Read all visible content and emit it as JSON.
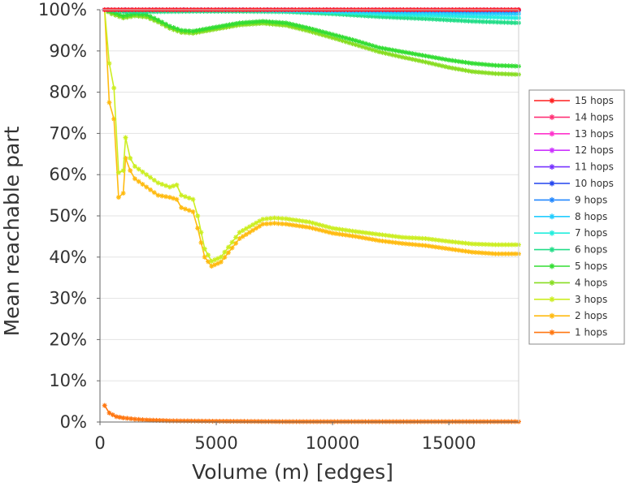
{
  "chart_data": {
    "type": "line",
    "title": "",
    "xlabel": "Volume (m) [edges]",
    "ylabel": "Mean reachable part",
    "xlim": [
      0,
      18000
    ],
    "ylim": [
      0,
      100
    ],
    "x_ticks": [
      {
        "value": 0,
        "label": "0"
      },
      {
        "value": 5000,
        "label": "5000"
      },
      {
        "value": 10000,
        "label": "10000"
      },
      {
        "value": 15000,
        "label": "15000"
      }
    ],
    "y_ticks": [
      {
        "value": 0,
        "label": "0%"
      },
      {
        "value": 10,
        "label": "10%"
      },
      {
        "value": 20,
        "label": "20%"
      },
      {
        "value": 30,
        "label": "30%"
      },
      {
        "value": 40,
        "label": "40%"
      },
      {
        "value": 50,
        "label": "50%"
      },
      {
        "value": 60,
        "label": "60%"
      },
      {
        "value": 70,
        "label": "70%"
      },
      {
        "value": 80,
        "label": "80%"
      },
      {
        "value": 90,
        "label": "90%"
      },
      {
        "value": 100,
        "label": "100%"
      }
    ],
    "grid": "horizontal",
    "legend_position": "right",
    "marker": "star",
    "series": [
      {
        "name": "15 hops",
        "color": "#ff1f1f",
        "x": [
          200,
          3000,
          6000,
          9000,
          12000,
          15000,
          18000
        ],
        "y": [
          100,
          100,
          100,
          100,
          100,
          100,
          100
        ]
      },
      {
        "name": "14 hops",
        "color": "#ff3377",
        "x": [
          200,
          3000,
          6000,
          9000,
          12000,
          15000,
          18000
        ],
        "y": [
          100,
          100,
          100,
          100,
          100,
          100,
          100
        ]
      },
      {
        "name": "13 hops",
        "color": "#ff33cc",
        "x": [
          200,
          3000,
          6000,
          9000,
          12000,
          15000,
          18000
        ],
        "y": [
          100,
          100,
          100,
          100,
          100,
          100,
          100
        ]
      },
      {
        "name": "12 hops",
        "color": "#cc33ff",
        "x": [
          200,
          3000,
          6000,
          9000,
          12000,
          15000,
          18000
        ],
        "y": [
          100,
          100,
          100,
          100,
          100,
          100,
          100
        ]
      },
      {
        "name": "11 hops",
        "color": "#7733ff",
        "x": [
          200,
          3000,
          6000,
          9000,
          12000,
          15000,
          18000
        ],
        "y": [
          100,
          100,
          100,
          100,
          100,
          100,
          100
        ]
      },
      {
        "name": "10 hops",
        "color": "#2244ee",
        "x": [
          200,
          3000,
          6000,
          9000,
          12000,
          15000,
          18000
        ],
        "y": [
          100,
          100,
          100,
          100,
          100,
          100,
          100
        ]
      },
      {
        "name": "9 hops",
        "color": "#2288ff",
        "x": [
          200,
          3000,
          6000,
          9000,
          12000,
          15000,
          18000
        ],
        "y": [
          100,
          100,
          100,
          100,
          99.9,
          99.8,
          99.7
        ]
      },
      {
        "name": "8 hops",
        "color": "#22ccff",
        "x": [
          200,
          3000,
          6000,
          9000,
          12000,
          15000,
          18000
        ],
        "y": [
          100,
          100,
          100,
          99.8,
          99.5,
          99.2,
          99.0
        ]
      },
      {
        "name": "7 hops",
        "color": "#22eedd",
        "x": [
          200,
          3000,
          6000,
          9000,
          12000,
          15000,
          18000
        ],
        "y": [
          100,
          100,
          100,
          99.6,
          99.0,
          98.5,
          98.0
        ]
      },
      {
        "name": "6 hops",
        "color": "#22dd88",
        "x": [
          200,
          1000,
          2000,
          4000,
          6000,
          8000,
          10000,
          12000,
          14000,
          16000,
          18000
        ],
        "y": [
          100,
          99.5,
          99.5,
          99.6,
          99.6,
          99.5,
          99.0,
          98.3,
          97.8,
          97.2,
          96.8
        ]
      },
      {
        "name": "5 hops",
        "color": "#33dd33",
        "x": [
          200,
          500,
          1000,
          1500,
          2000,
          2500,
          3000,
          3500,
          4000,
          5000,
          6000,
          7000,
          8000,
          9000,
          10000,
          11000,
          12000,
          13000,
          14000,
          15000,
          16000,
          17000,
          18000
        ],
        "y": [
          100,
          99.5,
          98.5,
          99.0,
          98.8,
          97.5,
          96.0,
          95.0,
          94.8,
          95.8,
          96.8,
          97.2,
          96.8,
          95.5,
          94.0,
          92.5,
          90.8,
          89.8,
          88.8,
          87.8,
          87.0,
          86.5,
          86.3
        ]
      },
      {
        "name": "4 hops",
        "color": "#88dd22",
        "x": [
          200,
          500,
          1000,
          1500,
          2000,
          2500,
          3000,
          3500,
          4000,
          5000,
          6000,
          7000,
          8000,
          9000,
          10000,
          11000,
          12000,
          13000,
          14000,
          15000,
          16000,
          17000,
          18000
        ],
        "y": [
          100,
          99.0,
          98.0,
          98.5,
          98.2,
          97.0,
          95.5,
          94.5,
          94.3,
          95.3,
          96.3,
          96.7,
          96.2,
          94.8,
          93.2,
          91.5,
          89.8,
          88.5,
          87.3,
          86.0,
          85.0,
          84.5,
          84.3
        ]
      },
      {
        "name": "3 hops",
        "color": "#ccee22",
        "x": [
          200,
          400,
          600,
          800,
          1000,
          1100,
          1300,
          1500,
          2000,
          2500,
          3000,
          3300,
          3500,
          4000,
          4200,
          4500,
          4800,
          5200,
          6000,
          7000,
          7500,
          8000,
          9000,
          10000,
          11000,
          12000,
          13000,
          14000,
          15000,
          16000,
          17000,
          18000
        ],
        "y": [
          100,
          87.0,
          81.0,
          60.5,
          61.0,
          69.0,
          64.0,
          62.0,
          60.0,
          58.0,
          57.0,
          57.5,
          55.0,
          54.0,
          50.0,
          42.0,
          39.0,
          40.0,
          46.0,
          49.2,
          49.5,
          49.3,
          48.5,
          47.0,
          46.2,
          45.5,
          44.8,
          44.5,
          43.8,
          43.2,
          43.0,
          43.0
        ]
      },
      {
        "name": "2 hops",
        "color": "#ffbb11",
        "x": [
          200,
          400,
          600,
          800,
          1000,
          1100,
          1300,
          1500,
          2000,
          2500,
          3000,
          3300,
          3500,
          4000,
          4200,
          4500,
          4800,
          5200,
          6000,
          7000,
          7500,
          8000,
          9000,
          10000,
          11000,
          12000,
          13000,
          14000,
          15000,
          16000,
          17000,
          18000
        ],
        "y": [
          100,
          77.5,
          73.5,
          54.5,
          55.5,
          64.0,
          61.0,
          59.0,
          57.0,
          55.0,
          54.5,
          54.0,
          52.0,
          51.0,
          47.0,
          40.0,
          37.8,
          38.8,
          44.5,
          48.0,
          48.2,
          48.0,
          47.2,
          45.8,
          45.0,
          44.0,
          43.3,
          42.8,
          42.0,
          41.2,
          40.8,
          40.8
        ]
      },
      {
        "name": "1 hops",
        "color": "#ff7711",
        "x": [
          200,
          400,
          700,
          1000,
          1500,
          2000,
          3000,
          5000,
          8000,
          12000,
          18000
        ],
        "y": [
          4.0,
          2.2,
          1.3,
          1.0,
          0.7,
          0.5,
          0.3,
          0.2,
          0.1,
          0.1,
          0.1
        ]
      }
    ]
  }
}
